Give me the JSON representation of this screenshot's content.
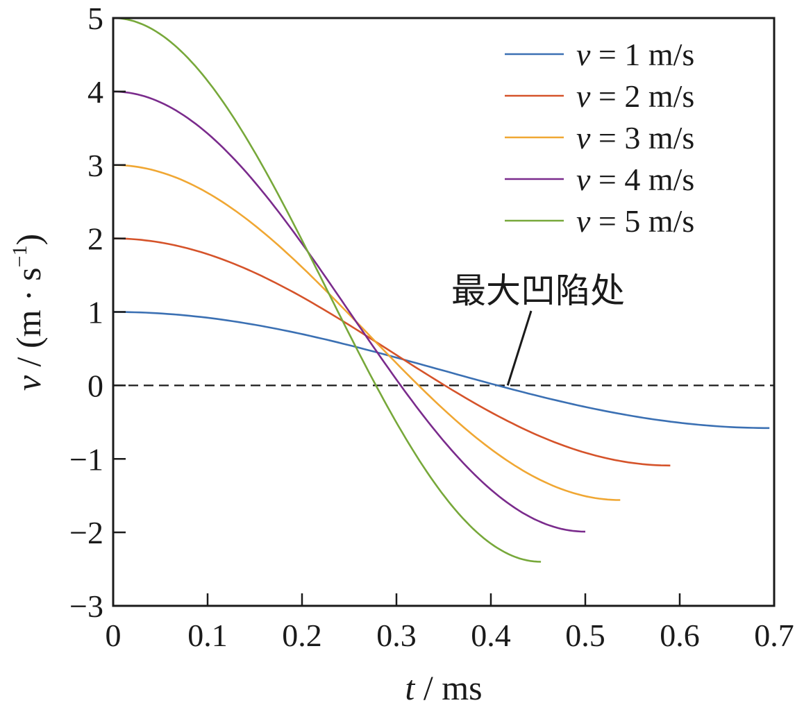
{
  "chart_data": {
    "type": "line",
    "title": "",
    "xlabel_var": "t",
    "xlabel_unit": " / ms",
    "ylabel_var": "v",
    "ylabel_unit": " / (m · s",
    "ylabel_exp": "−1",
    "ylabel_close": ")",
    "xlim": [
      0,
      0.7
    ],
    "ylim": [
      -3,
      5
    ],
    "xticks": [
      "0",
      "0.1",
      "0.2",
      "0.3",
      "0.4",
      "0.5",
      "0.6",
      "0.7"
    ],
    "yticks": [
      "−3",
      "−2",
      "−1",
      "0",
      "1",
      "2",
      "3",
      "4",
      "5"
    ],
    "legend_position": "top-right",
    "series": [
      {
        "name_var": "v",
        "name_rest": " = 1 m/s",
        "color": "#3b70b3",
        "v0": 1,
        "t_end": 0.695,
        "v_end": -0.58,
        "zero_crossing_t": 0.42
      },
      {
        "name_var": "v",
        "name_rest": " = 2 m/s",
        "color": "#d5532a",
        "v0": 2,
        "t_end": 0.59,
        "v_end": -1.09,
        "zero_crossing_t": 0.35
      },
      {
        "name_var": "v",
        "name_rest": " = 3 m/s",
        "color": "#f0a733",
        "v0": 3,
        "t_end": 0.537,
        "v_end": -1.56,
        "zero_crossing_t": 0.32
      },
      {
        "name_var": "v",
        "name_rest": " = 4 m/s",
        "color": "#7a2b8c",
        "v0": 4,
        "t_end": 0.5,
        "v_end": -1.99,
        "zero_crossing_t": 0.298
      },
      {
        "name_var": "v",
        "name_rest": " = 5 m/s",
        "color": "#77a83a",
        "v0": 5,
        "t_end": 0.453,
        "v_end": -2.4,
        "zero_crossing_t": 0.277
      }
    ],
    "reference_line": {
      "y": 0,
      "style": "dashed"
    },
    "annotation": {
      "text": "最大凹陷处",
      "points_to": [
        0.42,
        0
      ]
    }
  }
}
